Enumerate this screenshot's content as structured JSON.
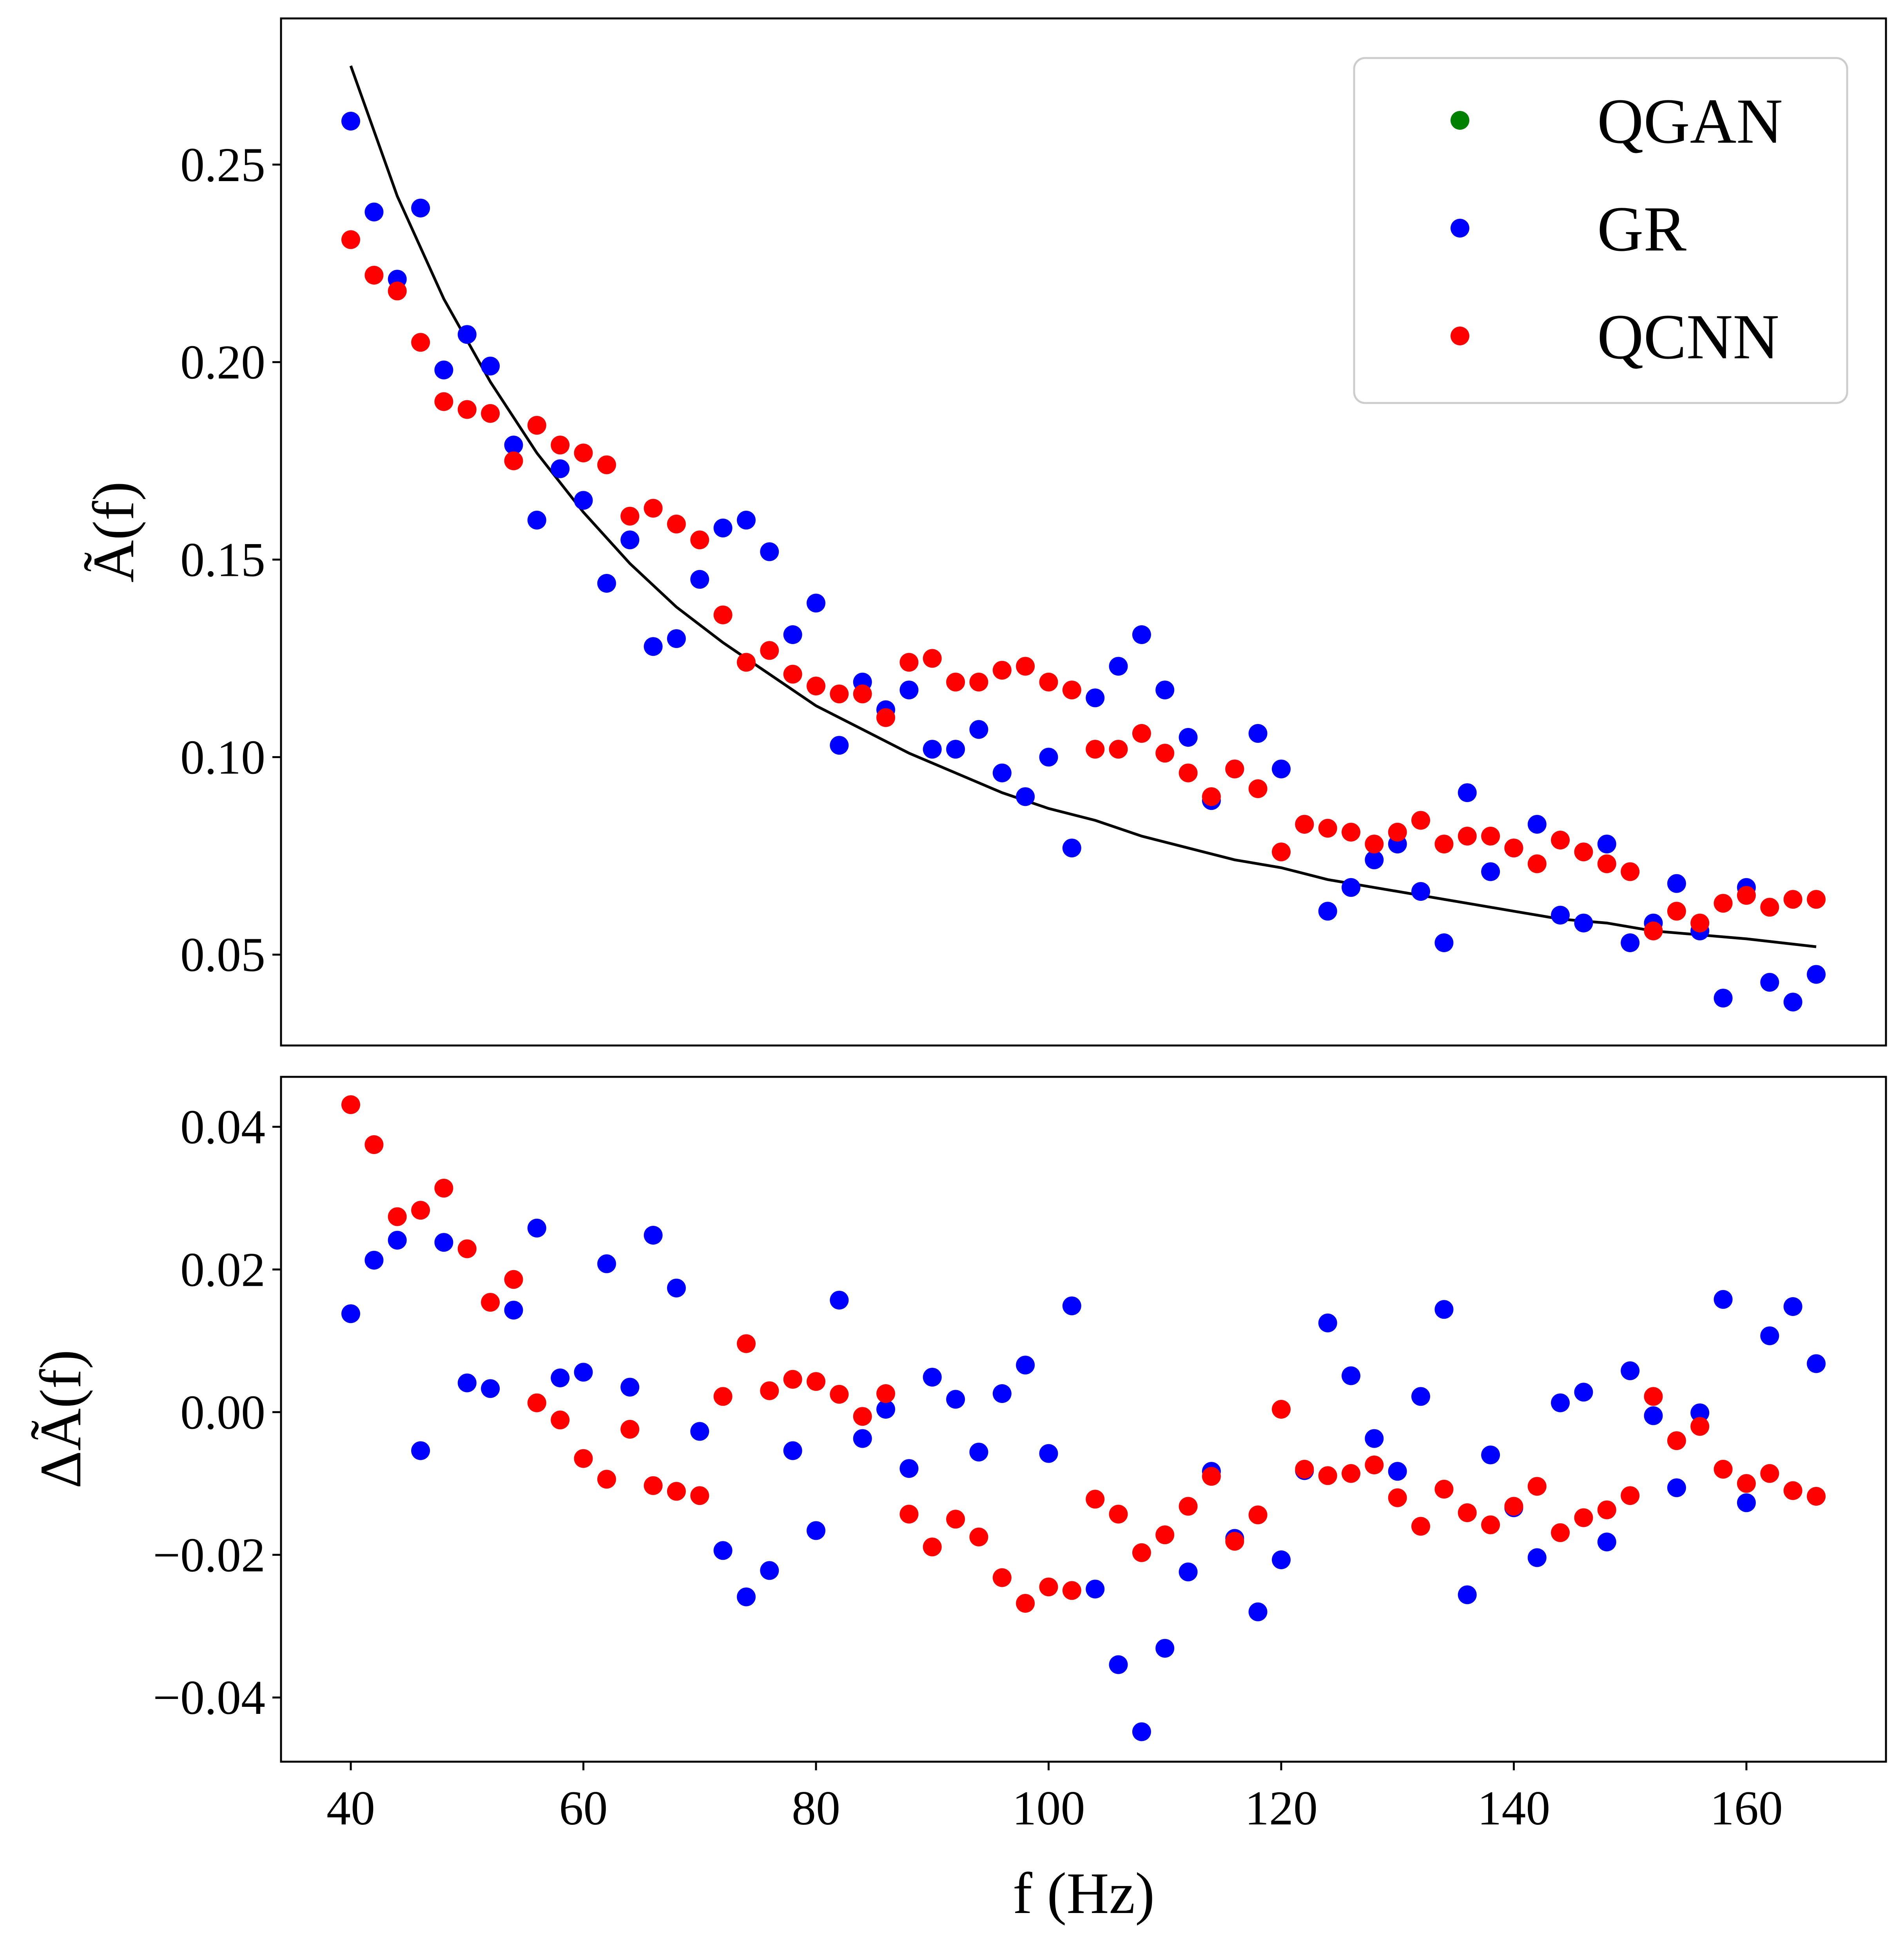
{
  "chart_data": [
    {
      "type": "scatter",
      "panel": "top",
      "ylabel": "Ã(f)",
      "xlim": [
        34,
        172
      ],
      "ylim": [
        0.027,
        0.287
      ],
      "yticks": [
        0.05,
        0.1,
        0.15,
        0.2,
        0.25
      ],
      "ytick_labels": [
        "0.05",
        "0.10",
        "0.15",
        "0.20",
        "0.25"
      ],
      "legend": {
        "position": "top-right",
        "entries": [
          "QGAN",
          "GR",
          "QCNN"
        ]
      },
      "colors": {
        "QGAN": "#008000",
        "GR": "#0000ff",
        "QCNN": "#ff0000",
        "fit": "#000000"
      },
      "x": [
        40,
        42,
        44,
        46,
        48,
        50,
        52,
        54,
        56,
        58,
        60,
        62,
        64,
        66,
        68,
        70,
        72,
        74,
        76,
        78,
        80,
        82,
        84,
        86,
        88,
        90,
        92,
        94,
        96,
        98,
        100,
        102,
        104,
        106,
        108,
        110,
        112,
        114,
        116,
        118,
        120,
        122,
        124,
        126,
        128,
        130,
        132,
        134,
        136,
        138,
        140,
        142,
        144,
        146,
        148,
        150,
        152,
        154,
        156,
        158,
        160,
        162,
        164,
        166
      ],
      "series": [
        {
          "name": "QGAN",
          "values": []
        },
        {
          "name": "GR",
          "values": [
            0.261,
            0.238,
            0.221,
            0.239,
            0.198,
            0.207,
            0.199,
            0.179,
            0.16,
            0.173,
            0.165,
            0.144,
            0.155,
            0.128,
            0.13,
            0.145,
            0.158,
            0.16,
            0.152,
            0.131,
            0.139,
            0.103,
            0.119,
            0.112,
            0.117,
            0.102,
            0.102,
            0.107,
            0.096,
            0.09,
            0.1,
            0.077,
            0.115,
            0.123,
            0.131,
            0.117,
            0.105,
            0.089,
            0.097,
            0.106,
            0.097,
            0.083,
            0.061,
            0.067,
            0.074,
            0.078,
            0.066,
            0.053,
            0.091,
            0.071,
            0.077,
            0.083,
            0.06,
            0.058,
            0.078,
            0.053,
            0.058,
            0.068,
            0.056,
            0.039,
            0.067,
            0.043,
            0.038,
            0.045
          ]
        },
        {
          "name": "QCNN",
          "values": [
            0.231,
            0.222,
            0.218,
            0.205,
            0.19,
            0.188,
            0.187,
            0.175,
            0.184,
            0.179,
            0.177,
            0.174,
            0.161,
            0.163,
            0.159,
            0.155,
            0.136,
            0.124,
            0.127,
            0.121,
            0.118,
            0.116,
            0.116,
            0.11,
            0.124,
            0.125,
            0.119,
            0.119,
            0.122,
            0.123,
            0.119,
            0.117,
            0.102,
            0.102,
            0.106,
            0.101,
            0.096,
            0.09,
            0.097,
            0.092,
            0.076,
            0.083,
            0.082,
            0.081,
            0.078,
            0.081,
            0.084,
            0.078,
            0.08,
            0.08,
            0.077,
            0.073,
            0.079,
            0.076,
            0.073,
            0.071,
            0.056,
            0.061,
            0.058,
            0.063,
            0.065,
            0.062,
            0.064,
            0.064
          ]
        }
      ],
      "fit_curve": {
        "x": [
          40,
          44,
          48,
          52,
          56,
          60,
          64,
          68,
          72,
          76,
          80,
          84,
          88,
          92,
          96,
          100,
          104,
          108,
          112,
          116,
          120,
          124,
          128,
          132,
          136,
          140,
          144,
          148,
          152,
          156,
          160,
          166
        ],
        "y": [
          0.275,
          0.242,
          0.216,
          0.195,
          0.177,
          0.162,
          0.149,
          0.138,
          0.129,
          0.121,
          0.113,
          0.107,
          0.101,
          0.096,
          0.091,
          0.087,
          0.084,
          0.08,
          0.077,
          0.074,
          0.072,
          0.069,
          0.067,
          0.065,
          0.063,
          0.061,
          0.059,
          0.058,
          0.056,
          0.055,
          0.054,
          0.052
        ]
      }
    },
    {
      "type": "scatter",
      "panel": "bottom",
      "xlabel": "f (Hz)",
      "ylabel": "ΔÃ(f)",
      "xlim": [
        34,
        172
      ],
      "ylim": [
        -0.049,
        0.047
      ],
      "xticks": [
        40,
        60,
        80,
        100,
        120,
        140,
        160
      ],
      "xtick_labels": [
        "40",
        "60",
        "80",
        "100",
        "120",
        "140",
        "160"
      ],
      "yticks": [
        -0.04,
        -0.02,
        0.0,
        0.02,
        0.04
      ],
      "ytick_labels": [
        "−0.04",
        "−0.02",
        "0.00",
        "0.02",
        "0.04"
      ],
      "x": [
        40,
        42,
        44,
        46,
        48,
        50,
        52,
        54,
        56,
        58,
        60,
        62,
        64,
        66,
        68,
        70,
        72,
        74,
        76,
        78,
        80,
        82,
        84,
        86,
        88,
        90,
        92,
        94,
        96,
        98,
        100,
        102,
        104,
        106,
        108,
        110,
        112,
        114,
        116,
        118,
        120,
        122,
        124,
        126,
        128,
        130,
        132,
        134,
        136,
        138,
        140,
        142,
        144,
        146,
        148,
        150,
        152,
        154,
        156,
        158,
        160,
        162,
        164,
        166
      ],
      "series": [
        {
          "name": "GR",
          "values": [
            0.0138,
            0.0213,
            0.0241,
            -0.0054,
            0.0238,
            0.0041,
            0.0033,
            0.0143,
            0.0258,
            0.0048,
            0.0056,
            0.0208,
            0.0035,
            0.0248,
            0.0174,
            -0.0027,
            -0.0194,
            -0.0259,
            -0.0222,
            -0.0054,
            -0.0166,
            0.0157,
            -0.0037,
            0.0004,
            -0.0079,
            0.0049,
            0.0018,
            -0.0056,
            0.0026,
            0.0066,
            -0.0058,
            0.0149,
            -0.0248,
            -0.0354,
            -0.0448,
            -0.0331,
            -0.0224,
            -0.0083,
            -0.0177,
            -0.028,
            -0.0207,
            -0.0082,
            0.0125,
            0.0051,
            -0.0037,
            -0.0083,
            0.0022,
            0.0144,
            -0.0256,
            -0.006,
            -0.0134,
            -0.0204,
            0.0013,
            0.0028,
            -0.0182,
            0.0058,
            -0.0005,
            -0.0106,
            -0.0001,
            0.0158,
            -0.0127,
            0.0107,
            0.0148,
            0.0068
          ]
        },
        {
          "name": "QCNN",
          "values": [
            0.0431,
            0.0375,
            0.0274,
            0.0283,
            0.0314,
            0.0229,
            0.0154,
            0.0186,
            0.0013,
            -0.0011,
            -0.0065,
            -0.0094,
            -0.0024,
            -0.0103,
            -0.0111,
            -0.0117,
            0.0022,
            0.0096,
            0.003,
            0.0046,
            0.0043,
            0.0025,
            -0.0006,
            0.0026,
            -0.0143,
            -0.0189,
            -0.015,
            -0.0175,
            -0.0232,
            -0.0268,
            -0.0245,
            -0.025,
            -0.0122,
            -0.0143,
            -0.0197,
            -0.0172,
            -0.0132,
            -0.009,
            -0.0181,
            -0.0144,
            0.0004,
            -0.008,
            -0.0089,
            -0.0086,
            -0.0074,
            -0.012,
            -0.016,
            -0.0108,
            -0.0141,
            -0.0158,
            -0.0132,
            -0.0104,
            -0.0169,
            -0.0148,
            -0.0137,
            -0.0117,
            0.0022,
            -0.004,
            -0.002,
            -0.008,
            -0.01,
            -0.0086,
            -0.011,
            -0.0118
          ]
        }
      ]
    }
  ]
}
